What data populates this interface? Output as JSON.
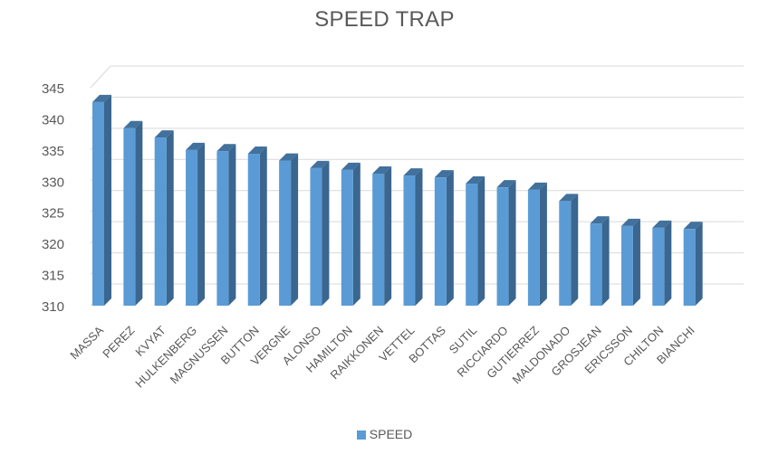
{
  "chart_data": {
    "type": "bar",
    "title": "SPEED TRAP",
    "categories": [
      "MASSA",
      "PEREZ",
      "KVYAT",
      "HULKENBERG",
      "MAGNUSSEN",
      "BUTTON",
      "VERGNE",
      "ALONSO",
      "HAMILTON",
      "RAIKKONEN",
      "VETTEL",
      "BOTTAS",
      "SUTIL",
      "RICCIARDO",
      "GUTIERREZ",
      "MALDONADO",
      "GROSJEAN",
      "ERICSSON",
      "CHILTON",
      "BIANCHI"
    ],
    "series": [
      {
        "name": "SPEED",
        "values": [
          342.7,
          338.5,
          337.0,
          335.0,
          334.8,
          334.4,
          333.3,
          332.1,
          331.8,
          331.2,
          330.9,
          330.6,
          329.6,
          329.0,
          328.6,
          326.8,
          323.2,
          322.8,
          322.5,
          322.3
        ]
      }
    ],
    "ylim": [
      310,
      345
    ],
    "yticks": [
      310,
      315,
      320,
      325,
      330,
      335,
      340,
      345
    ],
    "xlabel": "",
    "ylabel": "",
    "grid": true,
    "legend_position": "bottom",
    "colors": {
      "bar_front": "#5b9bd5",
      "bar_side": "#3a668f",
      "bar_top": "#41719c",
      "grid": "#d9d9d9",
      "text": "#595959"
    }
  }
}
